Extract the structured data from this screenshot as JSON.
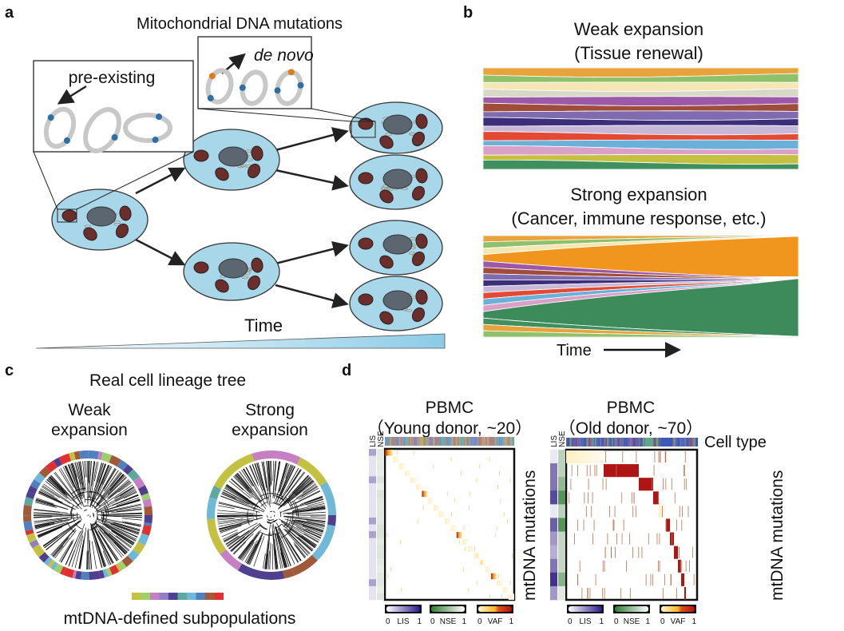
{
  "panel_a": {
    "label": "a",
    "title": "Mitochondrial DNA mutations",
    "inset_pre": "pre-existing",
    "inset_denovo": "de novo",
    "time_label": "Time"
  },
  "panel_b": {
    "label": "b",
    "weak_title": "Weak expansion",
    "weak_subtitle": "(Tissue renewal)",
    "strong_title": "Strong expansion",
    "strong_subtitle": "(Cancer, immune response, etc.)",
    "time_label": "Time",
    "stream_colors": [
      "#e8a33c",
      "#8fc16b",
      "#f4e7b5",
      "#d8d8c8",
      "#9b59a8",
      "#a04c3a",
      "#7e6bb0",
      "#3d2e7a",
      "#c8b8d8",
      "#e34a33",
      "#6bb0d8",
      "#d9a0c8",
      "#c4c040",
      "#3f8f5f"
    ],
    "strong_orange": "#f0961e",
    "strong_green": "#3d8a5a"
  },
  "panel_c": {
    "label": "c",
    "title": "Real cell lineage tree",
    "weak_line1": "Weak",
    "weak_line2": "expansion",
    "strong_line1": "Strong",
    "strong_line2": "expansion",
    "legend_label": "mtDNA-defined subpopulations",
    "subpopulation_colors": [
      "#c4c040",
      "#9fcf6b",
      "#c77fc4",
      "#8f7fc0",
      "#4f3f8f",
      "#5fa8a0",
      "#6fb8d8",
      "#4f7fbf",
      "#a05a3a",
      "#e03030"
    ]
  },
  "panel_d": {
    "label": "d",
    "young_title": "PBMC",
    "young_subtitle": "（Young donor,  ~20）",
    "old_title": "PBMC",
    "old_subtitle": "（Old donor,  ~70）",
    "col_lis": "LIS",
    "col_nse": "NSE",
    "cell_type_label": "Cell type",
    "row_label": "mtDNA mutations",
    "legends": [
      {
        "name": "LIS",
        "min": "0",
        "max": "1",
        "colors": [
          "#ffffff",
          "#2a1a8a"
        ]
      },
      {
        "name": "NSE",
        "min": "0",
        "max": "1",
        "colors": [
          "#2e7d32",
          "#ffffff"
        ]
      },
      {
        "name": "VAF",
        "min": "0",
        "max": "1",
        "colors": [
          "#fff6d0",
          "#f5b820",
          "#b01010"
        ]
      }
    ]
  }
}
